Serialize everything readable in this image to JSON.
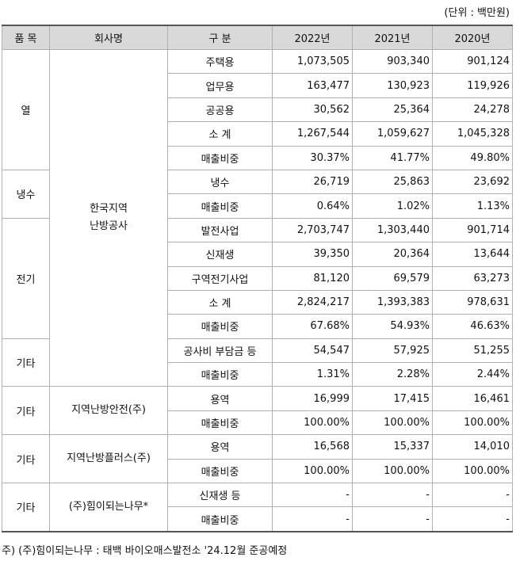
{
  "unit_note": "(단위 : 백만원)",
  "headers": [
    "품 목",
    "회사명",
    "구 분",
    "2022년",
    "2021년",
    "2020년"
  ],
  "groups": {
    "heat": "열",
    "cooling": "냉수",
    "electric": "전기",
    "other": "기타"
  },
  "companies": {
    "kdhc": "한국지역\n난방공사",
    "safety": "지역난방안전(주)",
    "plus": "지역난방플러스(주)",
    "himi": "(주)힘이되는나무*"
  },
  "rows": [
    {
      "label": "주택용",
      "y2022": "1,073,505",
      "y2021": "903,340",
      "y2020": "901,124"
    },
    {
      "label": "업무용",
      "y2022": "163,477",
      "y2021": "130,923",
      "y2020": "119,926"
    },
    {
      "label": "공공용",
      "y2022": "30,562",
      "y2021": "25,364",
      "y2020": "24,278"
    },
    {
      "label": "소  계",
      "y2022": "1,267,544",
      "y2021": "1,059,627",
      "y2020": "1,045,328"
    },
    {
      "label": "매출비중",
      "y2022": "30.37%",
      "y2021": "41.77%",
      "y2020": "49.80%"
    },
    {
      "label": "냉수",
      "y2022": "26,719",
      "y2021": "25,863",
      "y2020": "23,692"
    },
    {
      "label": "매출비중",
      "y2022": "0.64%",
      "y2021": "1.02%",
      "y2020": "1.13%"
    },
    {
      "label": "발전사업",
      "y2022": "2,703,747",
      "y2021": "1,303,440",
      "y2020": "901,714"
    },
    {
      "label": "신재생",
      "y2022": "39,350",
      "y2021": "20,364",
      "y2020": "13,644"
    },
    {
      "label": "구역전기사업",
      "y2022": "81,120",
      "y2021": "69,579",
      "y2020": "63,273"
    },
    {
      "label": "소  계",
      "y2022": "2,824,217",
      "y2021": "1,393,383",
      "y2020": "978,631"
    },
    {
      "label": "매출비중",
      "y2022": "67.68%",
      "y2021": "54.93%",
      "y2020": "46.63%"
    },
    {
      "label": "공사비 부담금 등",
      "y2022": "54,547",
      "y2021": "57,925",
      "y2020": "51,255"
    },
    {
      "label": "매출비중",
      "y2022": "1.31%",
      "y2021": "2.28%",
      "y2020": "2.44%"
    },
    {
      "label": "용역",
      "y2022": "16,999",
      "y2021": "17,415",
      "y2020": "16,461"
    },
    {
      "label": "매출비중",
      "y2022": "100.00%",
      "y2021": "100.00%",
      "y2020": "100.00%"
    },
    {
      "label": "용역",
      "y2022": "16,568",
      "y2021": "15,337",
      "y2020": "14,010"
    },
    {
      "label": "매출비중",
      "y2022": "100.00%",
      "y2021": "100.00%",
      "y2020": "100.00%"
    },
    {
      "label": "신재생 등",
      "y2022": "-",
      "y2021": "-",
      "y2020": "-"
    },
    {
      "label": "매출비중",
      "y2022": "-",
      "y2021": "-",
      "y2020": "-"
    }
  ],
  "footnote": "주) (주)힘이되는나무 : 태백 바이오매스발전소 '24.12월 준공예정"
}
